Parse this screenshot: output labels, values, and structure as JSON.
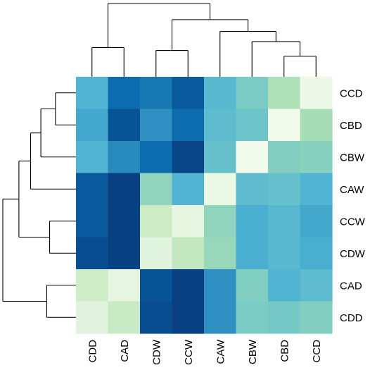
{
  "chart_data": {
    "type": "heatmap",
    "title": "",
    "xlabel": "",
    "ylabel": "",
    "row_labels": [
      "CCD",
      "CBD",
      "CBW",
      "CAW",
      "CCW",
      "CDW",
      "CAD",
      "CDD"
    ],
    "col_labels": [
      "CDD",
      "CAD",
      "CDW",
      "CCW",
      "CAW",
      "CBW",
      "CBD",
      "CCD"
    ],
    "value_range": [
      0,
      1
    ],
    "colormap": "GnBu",
    "values": [
      [
        0.62,
        0.86,
        0.82,
        0.92,
        0.6,
        0.5,
        0.35,
        0.05
      ],
      [
        0.66,
        0.94,
        0.74,
        0.86,
        0.58,
        0.54,
        0.02,
        0.38
      ],
      [
        0.62,
        0.76,
        0.86,
        0.98,
        0.56,
        0.02,
        0.48,
        0.46
      ],
      [
        0.92,
        1.0,
        0.44,
        0.62,
        0.06,
        0.58,
        0.56,
        0.62
      ],
      [
        0.92,
        1.0,
        0.25,
        0.1,
        0.44,
        0.64,
        0.6,
        0.66
      ],
      [
        0.96,
        1.0,
        0.12,
        0.28,
        0.42,
        0.64,
        0.6,
        0.64
      ],
      [
        0.24,
        0.1,
        0.94,
        1.0,
        0.74,
        0.48,
        0.62,
        0.58
      ],
      [
        0.12,
        0.26,
        0.96,
        1.0,
        0.74,
        0.5,
        0.52,
        0.48
      ]
    ],
    "row_dendrogram": {
      "leaf_order": [
        "CCD",
        "CBD",
        "CBW",
        "CAW",
        "CCW",
        "CDW",
        "CAD",
        "CDD"
      ],
      "merges": [
        {
          "a": "CCD",
          "b": "CBD",
          "height": 0.28
        },
        {
          "a": "CCW",
          "b": "CDW",
          "height": 0.36
        },
        {
          "a": "CAD",
          "b": "CDD",
          "height": 0.4
        },
        {
          "a": "m0",
          "b": "CBW",
          "height": 0.48
        },
        {
          "a": "m3",
          "b": "CAW",
          "height": 0.62
        },
        {
          "a": "m4",
          "b": "m1",
          "height": 0.78
        },
        {
          "a": "m5",
          "b": "m2",
          "height": 1.0
        }
      ]
    },
    "col_dendrogram": {
      "leaf_order": [
        "CDD",
        "CAD",
        "CDW",
        "CCW",
        "CAW",
        "CBW",
        "CBD",
        "CCD"
      ],
      "merges": [
        {
          "a": "CBD",
          "b": "CCD",
          "height": 0.28
        },
        {
          "a": "CDW",
          "b": "CCW",
          "height": 0.36
        },
        {
          "a": "CDD",
          "b": "CAD",
          "height": 0.4
        },
        {
          "a": "m0",
          "b": "CBW",
          "height": 0.48
        },
        {
          "a": "m3",
          "b": "CAW",
          "height": 0.62
        },
        {
          "a": "m1",
          "b": "m4",
          "height": 0.78
        },
        {
          "a": "m2",
          "b": "m5",
          "height": 1.0
        }
      ]
    }
  }
}
